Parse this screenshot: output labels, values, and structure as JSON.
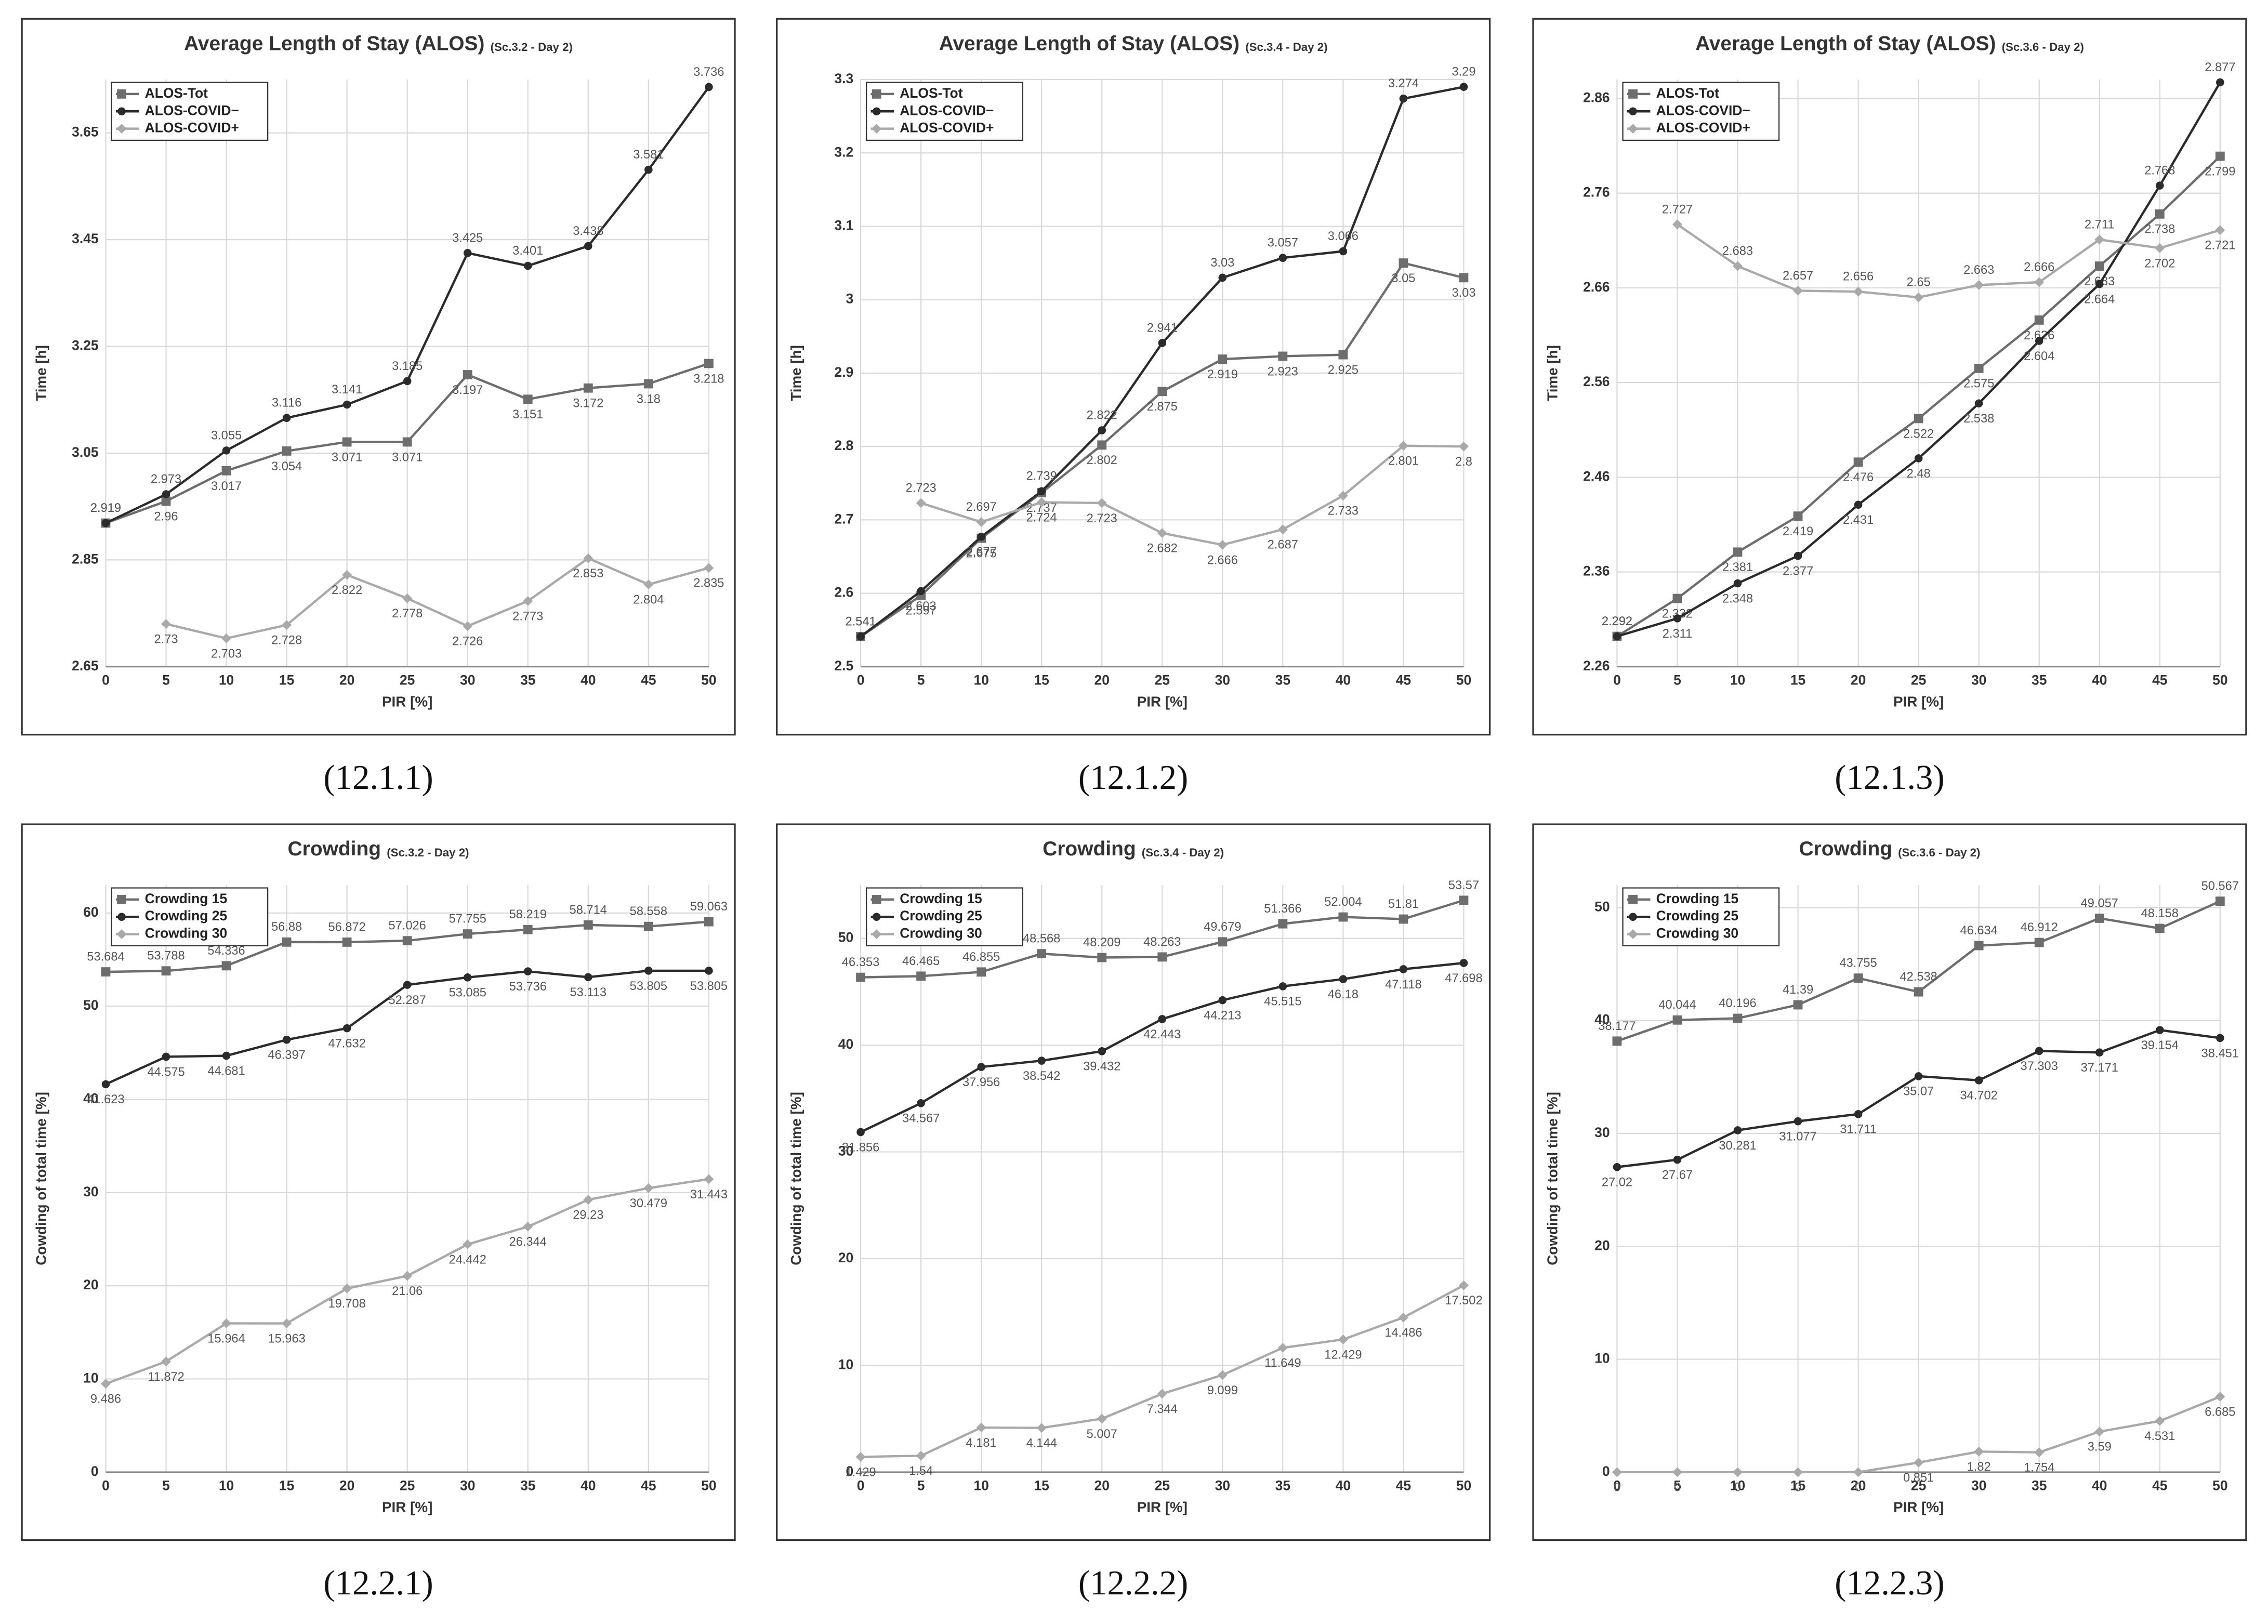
{
  "chart_data": [
    {
      "type": "line",
      "title": "Average Length of Stay (ALOS)",
      "subtitle": "(Sc.3.2 - Day 2)",
      "caption": "(12.1.1)",
      "x_label": "PIR [%]",
      "y_label": "Time [h]",
      "x": [
        0,
        5,
        10,
        15,
        20,
        25,
        30,
        35,
        40,
        45,
        50
      ],
      "xlim": [
        0,
        50
      ],
      "xticks": [
        0,
        5,
        10,
        15,
        20,
        25,
        30,
        35,
        40,
        45,
        50
      ],
      "ylim": [
        2.65,
        3.75
      ],
      "yticks": [
        2.65,
        2.85,
        3.05,
        3.25,
        3.45,
        3.65
      ],
      "grid": true,
      "legend": "upper left",
      "series": [
        {
          "name": "ALOS-Tot",
          "color": "#6d6d6d",
          "marker": "square",
          "values": [
            2.919,
            2.96,
            3.017,
            3.054,
            3.071,
            3.071,
            3.197,
            3.151,
            3.172,
            3.18,
            3.218
          ]
        },
        {
          "name": "ALOS-COVID−",
          "color": "#2b2b2b",
          "marker": "circle",
          "values": [
            2.919,
            2.973,
            3.055,
            3.116,
            3.141,
            3.185,
            3.425,
            3.401,
            3.438,
            3.581,
            3.736
          ]
        },
        {
          "name": "ALOS-COVID+",
          "color": "#a9a9a9",
          "marker": "diamond",
          "values": [
            null,
            2.73,
            2.703,
            2.728,
            2.822,
            2.778,
            2.726,
            2.773,
            2.853,
            2.804,
            2.835
          ]
        }
      ]
    },
    {
      "type": "line",
      "title": "Average Length of Stay (ALOS)",
      "subtitle": "(Sc.3.4 - Day 2)",
      "caption": "(12.1.2)",
      "x_label": "PIR [%]",
      "y_label": "Time [h]",
      "x": [
        0,
        5,
        10,
        15,
        20,
        25,
        30,
        35,
        40,
        45,
        50
      ],
      "xlim": [
        0,
        50
      ],
      "xticks": [
        0,
        5,
        10,
        15,
        20,
        25,
        30,
        35,
        40,
        45,
        50
      ],
      "ylim": [
        2.5,
        3.3
      ],
      "yticks": [
        2.5,
        2.6,
        2.7,
        2.8,
        2.9,
        3,
        3.1,
        3.2,
        3.3
      ],
      "grid": true,
      "legend": "upper left",
      "series": [
        {
          "name": "ALOS-Tot",
          "color": "#6d6d6d",
          "marker": "square",
          "values": [
            2.541,
            2.597,
            2.675,
            2.737,
            2.802,
            2.875,
            2.919,
            2.923,
            2.925,
            3.05,
            3.03
          ]
        },
        {
          "name": "ALOS-COVID−",
          "color": "#2b2b2b",
          "marker": "circle",
          "values": [
            2.541,
            2.603,
            2.677,
            2.739,
            2.822,
            2.941,
            3.03,
            3.057,
            3.066,
            3.274,
            3.29
          ]
        },
        {
          "name": "ALOS-COVID+",
          "color": "#a9a9a9",
          "marker": "diamond",
          "values": [
            null,
            2.723,
            2.697,
            2.724,
            2.723,
            2.682,
            2.666,
            2.687,
            2.733,
            2.801,
            2.8
          ]
        }
      ]
    },
    {
      "type": "line",
      "title": "Average Length of Stay (ALOS)",
      "subtitle": "(Sc.3.6 - Day 2)",
      "caption": "(12.1.3)",
      "x_label": "PIR [%]",
      "y_label": "Time [h]",
      "x": [
        0,
        5,
        10,
        15,
        20,
        25,
        30,
        35,
        40,
        45,
        50
      ],
      "xlim": [
        0,
        50
      ],
      "xticks": [
        0,
        5,
        10,
        15,
        20,
        25,
        30,
        35,
        40,
        45,
        50
      ],
      "ylim": [
        2.26,
        2.88
      ],
      "yticks": [
        2.26,
        2.36,
        2.46,
        2.56,
        2.66,
        2.76,
        2.86
      ],
      "grid": true,
      "legend": "upper left",
      "series": [
        {
          "name": "ALOS-Tot",
          "color": "#6d6d6d",
          "marker": "square",
          "values": [
            2.292,
            2.332,
            2.381,
            2.419,
            2.476,
            2.522,
            2.575,
            2.626,
            2.683,
            2.738,
            2.799
          ]
        },
        {
          "name": "ALOS-COVID−",
          "color": "#2b2b2b",
          "marker": "circle",
          "values": [
            2.292,
            2.311,
            2.348,
            2.377,
            2.431,
            2.48,
            2.538,
            2.604,
            2.664,
            2.768,
            2.877
          ]
        },
        {
          "name": "ALOS-COVID+",
          "color": "#a9a9a9",
          "marker": "diamond",
          "values": [
            null,
            2.727,
            2.683,
            2.657,
            2.656,
            2.65,
            2.663,
            2.666,
            2.711,
            2.702,
            2.721
          ]
        }
      ]
    },
    {
      "type": "line",
      "title": "Crowding",
      "subtitle": "(Sc.3.2 - Day 2)",
      "caption": "(12.2.1)",
      "x_label": "PIR [%]",
      "y_label": "Cowding of total time [%]",
      "x": [
        0,
        5,
        10,
        15,
        20,
        25,
        30,
        35,
        40,
        45,
        50
      ],
      "xlim": [
        0,
        50
      ],
      "xticks": [
        0,
        5,
        10,
        15,
        20,
        25,
        30,
        35,
        40,
        45,
        50
      ],
      "ylim": [
        0,
        63
      ],
      "yticks": [
        0,
        10,
        20,
        30,
        40,
        50,
        60
      ],
      "grid": true,
      "legend": "upper left",
      "series": [
        {
          "name": "Crowding 15",
          "color": "#6d6d6d",
          "marker": "square",
          "values": [
            53.684,
            53.788,
            54.336,
            56.88,
            56.872,
            57.026,
            57.755,
            58.219,
            58.714,
            58.558,
            59.063
          ]
        },
        {
          "name": "Crowding 25",
          "color": "#2b2b2b",
          "marker": "circle",
          "values": [
            41.623,
            44.575,
            44.681,
            46.397,
            47.632,
            52.287,
            53.085,
            53.736,
            53.113,
            53.805,
            53.805
          ]
        },
        {
          "name": "Crowding 30",
          "color": "#a9a9a9",
          "marker": "diamond",
          "values": [
            9.486,
            11.872,
            15.964,
            15.963,
            19.708,
            21.06,
            24.442,
            26.344,
            29.23,
            30.479,
            31.443
          ]
        }
      ]
    },
    {
      "type": "line",
      "title": "Crowding",
      "subtitle": "(Sc.3.4 - Day 2)",
      "caption": "(12.2.2)",
      "x_label": "PIR [%]",
      "y_label": "Cowding of total time [%]",
      "x": [
        0,
        5,
        10,
        15,
        20,
        25,
        30,
        35,
        40,
        45,
        50
      ],
      "xlim": [
        0,
        50
      ],
      "xticks": [
        0,
        5,
        10,
        15,
        20,
        25,
        30,
        35,
        40,
        45,
        50
      ],
      "ylim": [
        0,
        55
      ],
      "yticks": [
        0,
        10,
        20,
        30,
        40,
        50
      ],
      "grid": true,
      "legend": "upper left",
      "series": [
        {
          "name": "Crowding 15",
          "color": "#6d6d6d",
          "marker": "square",
          "values": [
            46.353,
            46.465,
            46.855,
            48.568,
            48.209,
            48.263,
            49.679,
            51.366,
            52.004,
            51.81,
            53.57
          ]
        },
        {
          "name": "Crowding 25",
          "color": "#2b2b2b",
          "marker": "circle",
          "values": [
            31.856,
            34.567,
            37.956,
            38.542,
            39.432,
            42.443,
            44.213,
            45.515,
            46.18,
            47.118,
            47.698
          ]
        },
        {
          "name": "Crowding 30",
          "color": "#a9a9a9",
          "marker": "diamond",
          "values": [
            1.429,
            1.54,
            4.181,
            4.144,
            5.007,
            7.344,
            9.099,
            11.649,
            12.429,
            14.486,
            17.502
          ]
        }
      ]
    },
    {
      "type": "line",
      "title": "Crowding",
      "subtitle": "(Sc.3.6 - Day 2)",
      "caption": "(12.2.3)",
      "x_label": "PIR [%]",
      "y_label": "Cowding of total time [%]",
      "x": [
        0,
        5,
        10,
        15,
        20,
        25,
        30,
        35,
        40,
        45,
        50
      ],
      "xlim": [
        0,
        50
      ],
      "xticks": [
        0,
        5,
        10,
        15,
        20,
        25,
        30,
        35,
        40,
        45,
        50
      ],
      "ylim": [
        0,
        52
      ],
      "yticks": [
        0,
        10,
        20,
        30,
        40,
        50
      ],
      "grid": true,
      "legend": "upper left",
      "series": [
        {
          "name": "Crowding 15",
          "color": "#6d6d6d",
          "marker": "square",
          "values": [
            38.177,
            40.044,
            40.196,
            41.39,
            43.755,
            42.538,
            46.634,
            46.912,
            49.057,
            48.158,
            50.567
          ]
        },
        {
          "name": "Crowding 25",
          "color": "#2b2b2b",
          "marker": "circle",
          "values": [
            27.02,
            27.67,
            30.281,
            31.077,
            31.711,
            35.07,
            34.702,
            37.303,
            37.171,
            39.154,
            38.451
          ]
        },
        {
          "name": "Crowding 30",
          "color": "#a9a9a9",
          "marker": "diamond",
          "values": [
            0,
            0,
            0,
            0,
            0,
            0.851,
            1.82,
            1.754,
            3.59,
            4.531,
            6.685
          ]
        }
      ]
    }
  ]
}
